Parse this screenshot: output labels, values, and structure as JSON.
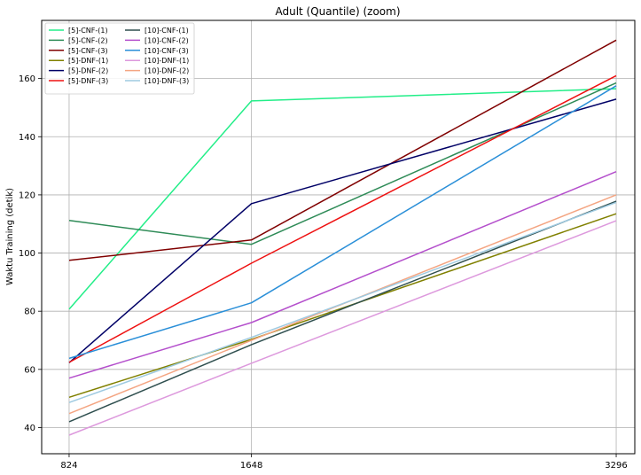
{
  "chart_data": {
    "type": "line",
    "title": "Adult (Quantile) (zoom)",
    "xlabel": "",
    "ylabel": "Waktu Training (detik)",
    "x": [
      824,
      1648,
      3296
    ],
    "x_tick_labels": [
      "824",
      "1648",
      "3296"
    ],
    "y_ticks": [
      40,
      60,
      80,
      100,
      120,
      140,
      160
    ],
    "ylim": [
      31,
      180
    ],
    "grid": true,
    "legend_position": "top-left",
    "series": [
      {
        "name": "[5]-CNF-(1)",
        "color": "#22ee88",
        "values": [
          80.7,
          152.3,
          156.5
        ]
      },
      {
        "name": "[5]-CNF-(2)",
        "color": "#2e8b57",
        "values": [
          111.2,
          103.0,
          158.5
        ]
      },
      {
        "name": "[5]-CNF-(3)",
        "color": "#800000",
        "values": [
          97.5,
          104.5,
          173.2
        ]
      },
      {
        "name": "[5]-DNF-(1)",
        "color": "#808000",
        "values": [
          50.4,
          70.3,
          113.5
        ]
      },
      {
        "name": "[5]-DNF-(2)",
        "color": "#000066",
        "values": [
          62.3,
          117.0,
          152.9
        ]
      },
      {
        "name": "[5]-DNF-(3)",
        "color": "#ee1111",
        "values": [
          62.4,
          96.5,
          161.0
        ]
      },
      {
        "name": "[10]-CNF-(1)",
        "color": "#2f4f4f",
        "values": [
          42.0,
          68.5,
          117.8
        ]
      },
      {
        "name": "[10]-CNF-(2)",
        "color": "#b44fcc",
        "values": [
          57.0,
          76.1,
          128.0
        ]
      },
      {
        "name": "[10]-CNF-(3)",
        "color": "#2a8fd8",
        "values": [
          63.8,
          82.9,
          157.5
        ]
      },
      {
        "name": "[10]-DNF-(1)",
        "color": "#dd99dd",
        "values": [
          37.4,
          62.1,
          111.1
        ]
      },
      {
        "name": "[10]-DNF-(2)",
        "color": "#f4a582",
        "values": [
          44.8,
          70.0,
          120.0
        ]
      },
      {
        "name": "[10]-DNF-(3)",
        "color": "#9ecae1",
        "values": [
          48.6,
          71.0,
          117.4
        ]
      }
    ]
  }
}
